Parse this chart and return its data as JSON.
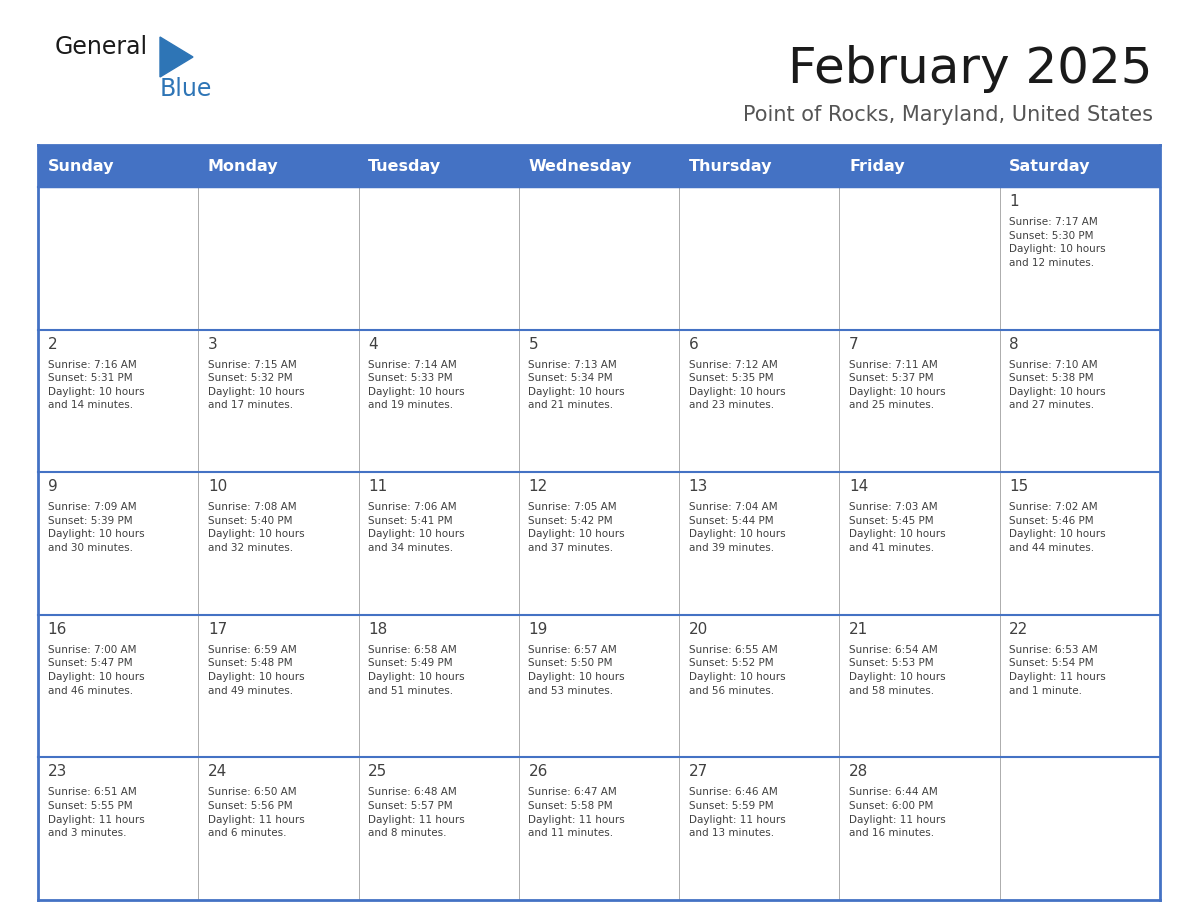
{
  "title": "February 2025",
  "subtitle": "Point of Rocks, Maryland, United States",
  "days_of_week": [
    "Sunday",
    "Monday",
    "Tuesday",
    "Wednesday",
    "Thursday",
    "Friday",
    "Saturday"
  ],
  "header_bg": "#4472C4",
  "header_text": "#FFFFFF",
  "border_color": "#4472C4",
  "text_color": "#404040",
  "title_color": "#1a1a1a",
  "subtitle_color": "#555555",
  "logo_general_color": "#1a1a1a",
  "logo_blue_color": "#2e75b6",
  "cell_border_color": "#AAAAAA",
  "calendar_data": [
    [
      null,
      null,
      null,
      null,
      null,
      null,
      1
    ],
    [
      2,
      3,
      4,
      5,
      6,
      7,
      8
    ],
    [
      9,
      10,
      11,
      12,
      13,
      14,
      15
    ],
    [
      16,
      17,
      18,
      19,
      20,
      21,
      22
    ],
    [
      23,
      24,
      25,
      26,
      27,
      28,
      null
    ]
  ],
  "sunrise_data": {
    "1": "Sunrise: 7:17 AM\nSunset: 5:30 PM\nDaylight: 10 hours\nand 12 minutes.",
    "2": "Sunrise: 7:16 AM\nSunset: 5:31 PM\nDaylight: 10 hours\nand 14 minutes.",
    "3": "Sunrise: 7:15 AM\nSunset: 5:32 PM\nDaylight: 10 hours\nand 17 minutes.",
    "4": "Sunrise: 7:14 AM\nSunset: 5:33 PM\nDaylight: 10 hours\nand 19 minutes.",
    "5": "Sunrise: 7:13 AM\nSunset: 5:34 PM\nDaylight: 10 hours\nand 21 minutes.",
    "6": "Sunrise: 7:12 AM\nSunset: 5:35 PM\nDaylight: 10 hours\nand 23 minutes.",
    "7": "Sunrise: 7:11 AM\nSunset: 5:37 PM\nDaylight: 10 hours\nand 25 minutes.",
    "8": "Sunrise: 7:10 AM\nSunset: 5:38 PM\nDaylight: 10 hours\nand 27 minutes.",
    "9": "Sunrise: 7:09 AM\nSunset: 5:39 PM\nDaylight: 10 hours\nand 30 minutes.",
    "10": "Sunrise: 7:08 AM\nSunset: 5:40 PM\nDaylight: 10 hours\nand 32 minutes.",
    "11": "Sunrise: 7:06 AM\nSunset: 5:41 PM\nDaylight: 10 hours\nand 34 minutes.",
    "12": "Sunrise: 7:05 AM\nSunset: 5:42 PM\nDaylight: 10 hours\nand 37 minutes.",
    "13": "Sunrise: 7:04 AM\nSunset: 5:44 PM\nDaylight: 10 hours\nand 39 minutes.",
    "14": "Sunrise: 7:03 AM\nSunset: 5:45 PM\nDaylight: 10 hours\nand 41 minutes.",
    "15": "Sunrise: 7:02 AM\nSunset: 5:46 PM\nDaylight: 10 hours\nand 44 minutes.",
    "16": "Sunrise: 7:00 AM\nSunset: 5:47 PM\nDaylight: 10 hours\nand 46 minutes.",
    "17": "Sunrise: 6:59 AM\nSunset: 5:48 PM\nDaylight: 10 hours\nand 49 minutes.",
    "18": "Sunrise: 6:58 AM\nSunset: 5:49 PM\nDaylight: 10 hours\nand 51 minutes.",
    "19": "Sunrise: 6:57 AM\nSunset: 5:50 PM\nDaylight: 10 hours\nand 53 minutes.",
    "20": "Sunrise: 6:55 AM\nSunset: 5:52 PM\nDaylight: 10 hours\nand 56 minutes.",
    "21": "Sunrise: 6:54 AM\nSunset: 5:53 PM\nDaylight: 10 hours\nand 58 minutes.",
    "22": "Sunrise: 6:53 AM\nSunset: 5:54 PM\nDaylight: 11 hours\nand 1 minute.",
    "23": "Sunrise: 6:51 AM\nSunset: 5:55 PM\nDaylight: 11 hours\nand 3 minutes.",
    "24": "Sunrise: 6:50 AM\nSunset: 5:56 PM\nDaylight: 11 hours\nand 6 minutes.",
    "25": "Sunrise: 6:48 AM\nSunset: 5:57 PM\nDaylight: 11 hours\nand 8 minutes.",
    "26": "Sunrise: 6:47 AM\nSunset: 5:58 PM\nDaylight: 11 hours\nand 11 minutes.",
    "27": "Sunrise: 6:46 AM\nSunset: 5:59 PM\nDaylight: 11 hours\nand 13 minutes.",
    "28": "Sunrise: 6:44 AM\nSunset: 6:00 PM\nDaylight: 11 hours\nand 16 minutes."
  },
  "figsize": [
    11.88,
    9.18
  ],
  "dpi": 100
}
